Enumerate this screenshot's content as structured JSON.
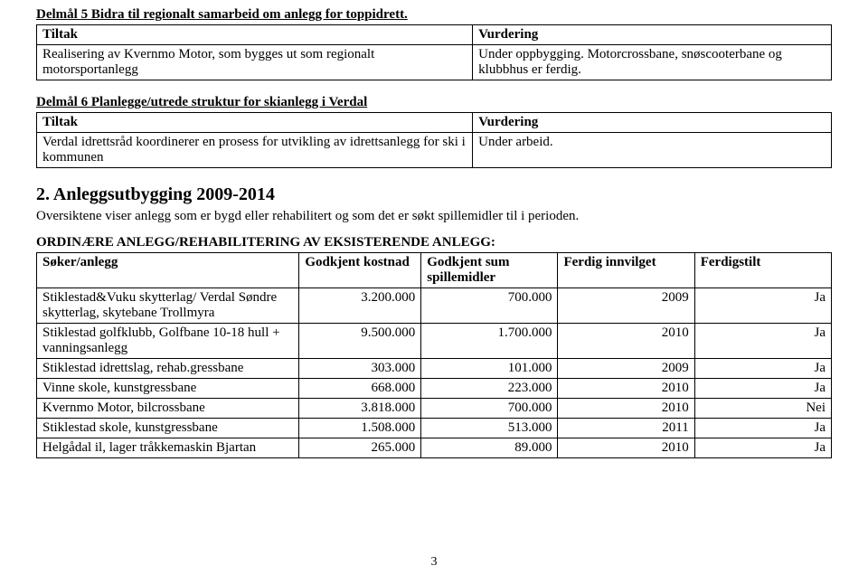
{
  "delmal5": {
    "title": "Delmål 5 Bidra til regionalt samarbeid om anlegg for toppidrett.",
    "col1_header": "Tiltak",
    "col2_header": "Vurdering",
    "row": {
      "tiltak": "Realisering av Kvernmo Motor, som bygges ut som regionalt motorsportanlegg",
      "vurdering": "Under oppbygging. Motorcrossbane, snøscooterbane og klubbhus er ferdig."
    }
  },
  "delmal6": {
    "title": "Delmål 6 Planlegge/utrede struktur for skianlegg i Verdal",
    "col1_header": "Tiltak",
    "col2_header": "Vurdering",
    "row": {
      "tiltak": "Verdal idrettsråd koordinerer en prosess for utvikling av idrettsanlegg for ski i kommunen",
      "vurdering": "Under arbeid."
    }
  },
  "section2": {
    "title": "2. Anleggsutbygging 2009-2014",
    "intro": "Oversiktene viser anlegg som er bygd eller rehabilitert og som det er søkt spillemidler til i perioden.",
    "subheading": "ORDINÆRE ANLEGG/REHABILITERING AV EKSISTERENDE ANLEGG:",
    "columns": [
      "Søker/anlegg",
      "Godkjent kostnad",
      "Godkjent sum spillemidler",
      "Ferdig innvilget",
      "Ferdigstilt"
    ],
    "rows": [
      {
        "name": "Stiklestad&Vuku skytterlag/ Verdal Søndre skytterlag, skytebane Trollmyra",
        "cost": "3.200.000",
        "sum": "700.000",
        "year": "2009",
        "done": "Ja"
      },
      {
        "name": "Stiklestad golfklubb, Golfbane 10-18 hull + vanningsanlegg",
        "cost": "9.500.000",
        "sum": "1.700.000",
        "year": "2010",
        "done": "Ja"
      },
      {
        "name": "Stiklestad idrettslag, rehab.gressbane",
        "cost": "303.000",
        "sum": "101.000",
        "year": "2009",
        "done": "Ja"
      },
      {
        "name": "Vinne skole, kunstgressbane",
        "cost": "668.000",
        "sum": "223.000",
        "year": "2010",
        "done": "Ja"
      },
      {
        "name": "Kvernmo Motor, bilcrossbane",
        "cost": "3.818.000",
        "sum": "700.000",
        "year": "2010",
        "done": "Nei"
      },
      {
        "name": "Stiklestad skole, kunstgressbane",
        "cost": "1.508.000",
        "sum": "513.000",
        "year": "2011",
        "done": "Ja"
      },
      {
        "name": "Helgådal il, lager tråkkemaskin Bjartan",
        "cost": "265.000",
        "sum": "89.000",
        "year": "2010",
        "done": "Ja"
      }
    ]
  },
  "page_number": "3"
}
